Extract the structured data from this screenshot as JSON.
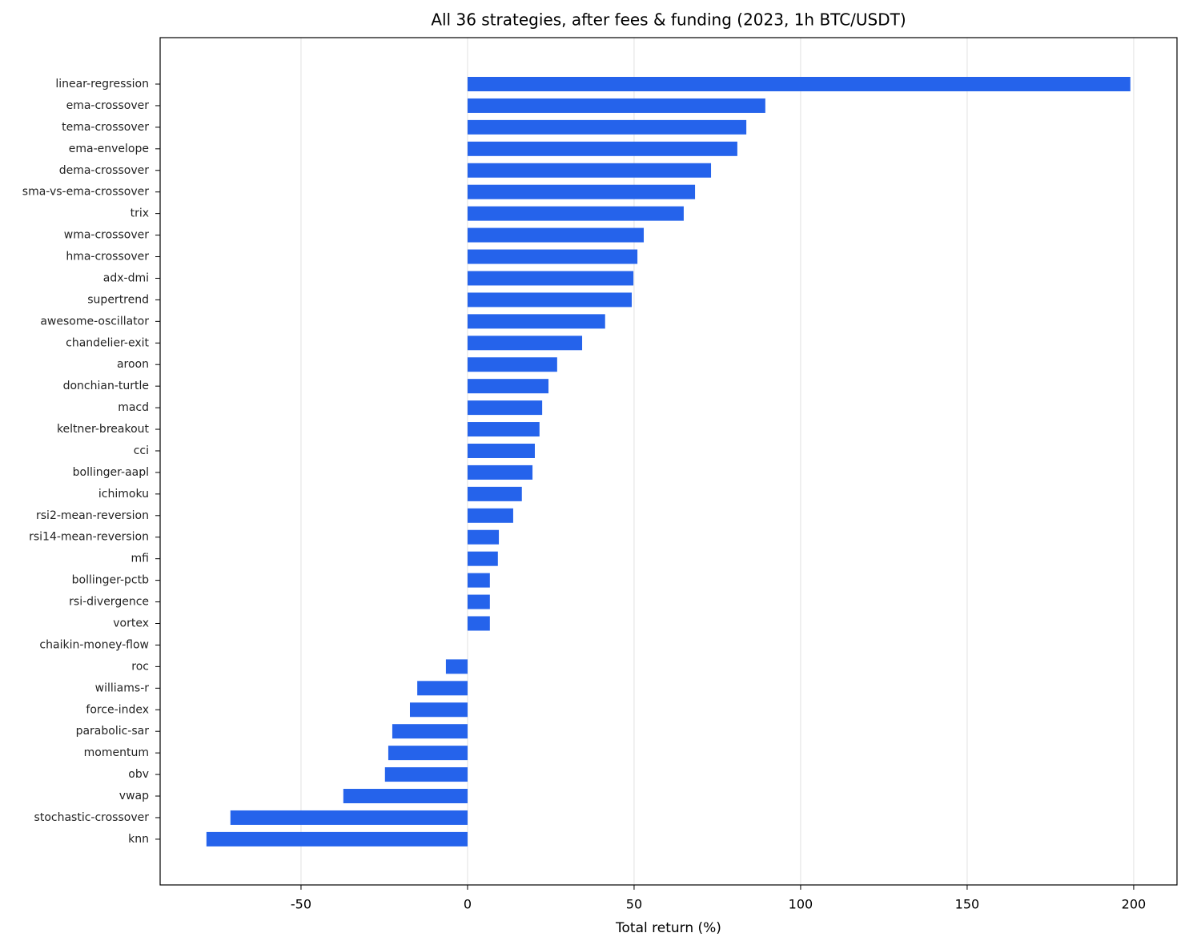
{
  "chart_data": {
    "type": "barh",
    "title": "All 36 strategies, after fees & funding (2023, 1h BTC/USDT)",
    "x_label": "Total return (%)",
    "categories": [
      "linear-regression",
      "ema-crossover",
      "tema-crossover",
      "ema-envelope",
      "dema-crossover",
      "sma-vs-ema-crossover",
      "trix",
      "wma-crossover",
      "hma-crossover",
      "adx-dmi",
      "supertrend",
      "awesome-oscillator",
      "chandelier-exit",
      "aroon",
      "donchian-turtle",
      "macd",
      "keltner-breakout",
      "cci",
      "bollinger-aapl",
      "ichimoku",
      "rsi2-mean-reversion",
      "rsi14-mean-reversion",
      "mfi",
      "bollinger-pctb",
      "rsi-divergence",
      "vortex",
      "chaikin-money-flow",
      "roc",
      "williams-r",
      "force-index",
      "parabolic-sar",
      "momentum",
      "obv",
      "vwap",
      "stochastic-crossover",
      "knn"
    ],
    "values": [
      199.0,
      89.4,
      83.7,
      81.0,
      73.1,
      68.3,
      64.9,
      52.9,
      51.0,
      49.8,
      49.3,
      41.3,
      34.4,
      26.9,
      24.3,
      22.4,
      21.6,
      20.2,
      19.5,
      16.3,
      13.7,
      9.4,
      9.1,
      6.7,
      6.7,
      6.7,
      0,
      -6.5,
      -15.1,
      -17.3,
      -22.6,
      -23.8,
      -24.8,
      -37.3,
      -71.2,
      -78.4
    ],
    "color": "#2563eb",
    "xlim": [
      -92.3,
      213.0
    ],
    "xticks": [
      -50,
      0,
      50,
      100,
      150,
      200
    ],
    "grid": true
  }
}
